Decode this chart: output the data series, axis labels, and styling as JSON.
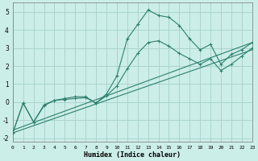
{
  "xlabel": "Humidex (Indice chaleur)",
  "background_color": "#cceee8",
  "grid_color": "#aad4ce",
  "line_color": "#2d7f6e",
  "xlim": [
    0,
    23
  ],
  "ylim": [
    -2.2,
    5.5
  ],
  "xticks": [
    0,
    1,
    2,
    3,
    4,
    5,
    6,
    7,
    8,
    9,
    10,
    11,
    12,
    13,
    14,
    15,
    16,
    17,
    18,
    19,
    20,
    21,
    22,
    23
  ],
  "yticks": [
    -2,
    -1,
    0,
    1,
    2,
    3,
    4,
    5
  ],
  "series1_x": [
    0,
    1,
    2,
    3,
    4,
    5,
    6,
    7,
    8,
    9,
    10,
    11,
    12,
    13,
    14,
    15,
    16,
    17,
    18,
    19,
    20,
    21,
    22,
    23
  ],
  "series1_y": [
    -1.7,
    -0.05,
    -1.1,
    -0.2,
    0.1,
    0.2,
    0.3,
    0.3,
    -0.05,
    0.45,
    1.45,
    3.5,
    4.3,
    5.1,
    4.8,
    4.7,
    4.25,
    3.5,
    2.9,
    3.2,
    2.1,
    2.65,
    2.9,
    3.3
  ],
  "series2_x": [
    0,
    1,
    2,
    3,
    4,
    5,
    6,
    7,
    8,
    9,
    10,
    11,
    12,
    13,
    14,
    15,
    16,
    17,
    18,
    19,
    20,
    21,
    22,
    23
  ],
  "series2_y": [
    -1.7,
    -0.05,
    -1.1,
    -0.15,
    0.1,
    0.15,
    0.2,
    0.25,
    -0.05,
    0.35,
    0.9,
    1.85,
    2.7,
    3.3,
    3.4,
    3.1,
    2.7,
    2.4,
    2.1,
    2.4,
    1.75,
    2.1,
    2.55,
    3.0
  ],
  "series3_x": [
    0,
    23
  ],
  "series3_y": [
    -1.55,
    3.3
  ],
  "series4_x": [
    0,
    23
  ],
  "series4_y": [
    -1.7,
    2.9
  ]
}
